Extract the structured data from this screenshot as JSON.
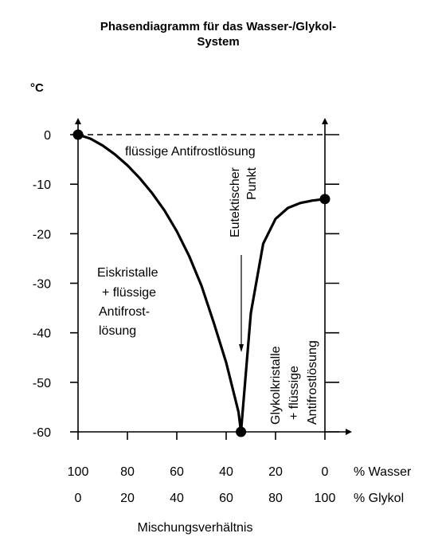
{
  "chart_data": {
    "type": "line",
    "title_lines": [
      "Phasendiagramm für das Wasser-/Glykol-",
      "System"
    ],
    "ylabel": "°C",
    "xlabel": "Mischungsverhältnis",
    "y_ticks": [
      "0",
      "-10",
      "-20",
      "-30",
      "-40",
      "-50",
      "-60"
    ],
    "ylim": [
      -60,
      0
    ],
    "x_ticks_wasser": [
      "100",
      "80",
      "60",
      "40",
      "20",
      "0"
    ],
    "x_ticks_glykol": [
      "0",
      "20",
      "40",
      "60",
      "80",
      "100"
    ],
    "x_axis_label_wasser": "% Wasser",
    "x_axis_label_glykol": "% Glykol",
    "xlim_glykol": [
      0,
      100
    ],
    "series": [
      {
        "x_glykol": [
          0,
          5,
          10,
          15,
          20,
          25,
          30,
          35,
          40,
          45,
          50,
          55,
          60,
          65,
          66,
          70,
          75,
          80,
          85,
          90,
          95,
          100
        ],
        "y_celsius": [
          0,
          -0.8,
          -2.2,
          -4,
          -6.2,
          -8.8,
          -11.8,
          -15.3,
          -19.5,
          -24.5,
          -30.5,
          -38,
          -46,
          -56,
          -60,
          -36,
          -22,
          -17,
          -14.8,
          -13.8,
          -13.3,
          -13
        ]
      }
    ],
    "key_points": [
      {
        "x_glykol": 0,
        "y_celsius": 0
      },
      {
        "x_glykol": 66,
        "y_celsius": -60
      },
      {
        "x_glykol": 100,
        "y_celsius": -13
      }
    ],
    "grid": false,
    "regions": {
      "liquid": "flüssige Antifrostlösung",
      "ice_left": [
        "Eiskristalle",
        "+ flüssige",
        "Antifrost-",
        "lösung"
      ],
      "glycol_right": [
        "Glykolkristalle",
        "+ flüssige",
        "Antifrostlösung"
      ],
      "eutectic": [
        "Eutektischer",
        "Punkt"
      ]
    }
  }
}
